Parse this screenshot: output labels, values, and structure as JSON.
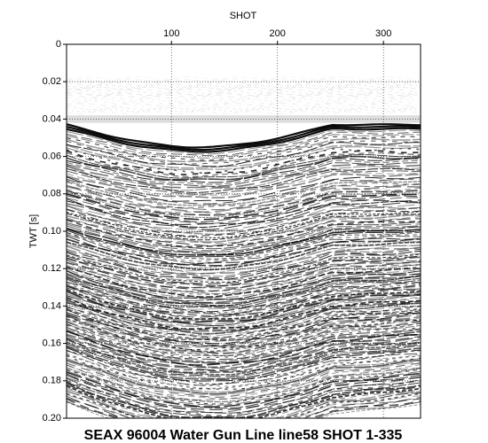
{
  "chart_data": {
    "type": "seismic",
    "title": "SEAX 96004 Water Gun Line line58 SHOT 1-335",
    "xlabel": "SHOT",
    "ylabel": "TWT [s]",
    "xlim": [
      1,
      335
    ],
    "xticks": [
      100,
      200,
      300
    ],
    "ylim": [
      0,
      0.2
    ],
    "y_inverted": true,
    "yticks": [
      0,
      0.02,
      0.04,
      0.06,
      0.08,
      {
        "value": 0.1,
        "label": "0.10"
      },
      0.12,
      0.14,
      0.16,
      0.18,
      {
        "value": 0.2,
        "label": "0.20"
      }
    ],
    "grid": true
  }
}
